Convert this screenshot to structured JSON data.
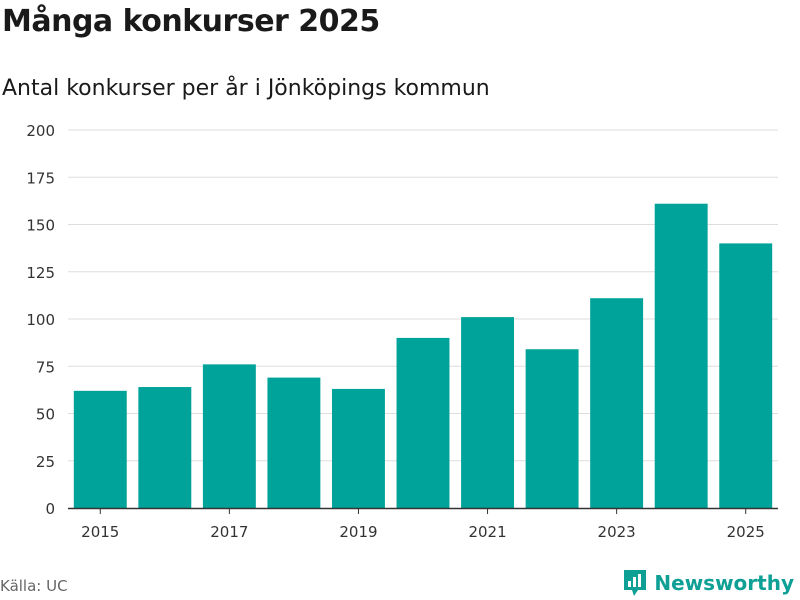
{
  "header": {
    "title": "Många konkurser 2025",
    "subtitle": "Antal konkurser per år i Jönköpings kommun"
  },
  "footer": {
    "source": "Källa: UC",
    "brand": "Newsworthy"
  },
  "colors": {
    "bar": "#00a39a",
    "brand": "#0e9f95"
  },
  "chart_data": {
    "type": "bar",
    "title": "Många konkurser 2025",
    "subtitle": "Antal konkurser per år i Jönköpings kommun",
    "xlabel": "",
    "ylabel": "",
    "categories": [
      "2015",
      "2016",
      "2017",
      "2018",
      "2019",
      "2020",
      "2021",
      "2022",
      "2023",
      "2024",
      "2025"
    ],
    "values": [
      62,
      64,
      76,
      69,
      63,
      90,
      101,
      84,
      111,
      161,
      140
    ],
    "x_tick_labels": [
      "2015",
      "2017",
      "2019",
      "2021",
      "2023",
      "2025"
    ],
    "y_ticks": [
      0,
      25,
      50,
      75,
      100,
      125,
      150,
      175,
      200
    ],
    "ylim": [
      0,
      200
    ],
    "grid": true,
    "legend": "none"
  }
}
